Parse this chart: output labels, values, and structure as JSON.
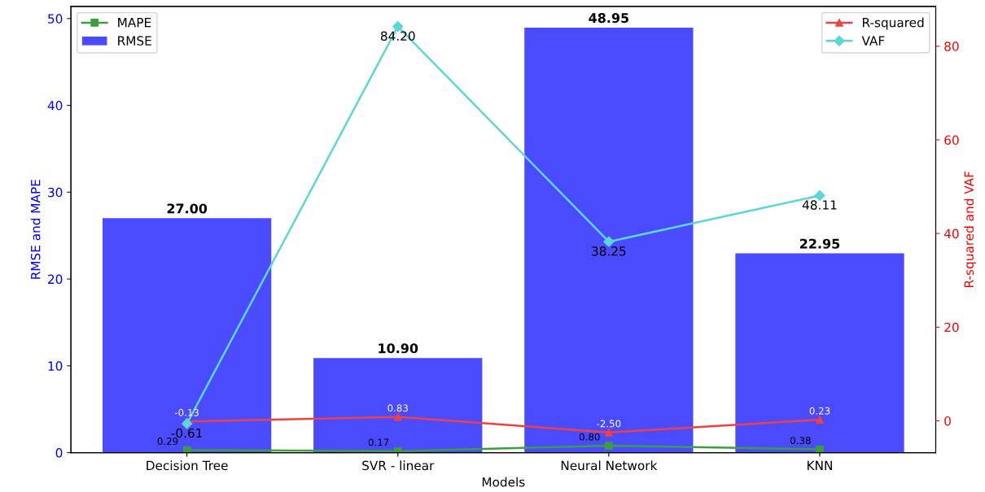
{
  "chart_data": {
    "type": "bar",
    "xlabel": "Models",
    "ylabel": "RMSE and MAPE",
    "y2label": "R-squared and VAF",
    "categories": [
      "Decision Tree",
      "SVR - linear",
      "Neural Network",
      "KNN"
    ],
    "series": [
      {
        "name": "RMSE",
        "color": "#4a4aff",
        "values": [
          27.0,
          10.9,
          48.95,
          22.95
        ],
        "value_labels": [
          "27.00",
          "10.90",
          "48.95",
          "22.95"
        ]
      },
      {
        "name": "MAPE",
        "type": "line",
        "marker": "square",
        "color": "#3c9f3c",
        "values": [
          0.29,
          0.17,
          0.8,
          0.38
        ],
        "value_labels": [
          "0.29",
          "0.17",
          "0.80",
          "0.38"
        ]
      },
      {
        "name": "R-squared",
        "type": "line",
        "axis": "y2",
        "marker": "triangle",
        "color": "#f04040",
        "values": [
          -0.13,
          0.83,
          -2.5,
          0.23
        ],
        "value_labels": [
          "-0.13",
          "0.83",
          "-2.50",
          "0.23"
        ]
      },
      {
        "name": "VAF",
        "type": "line",
        "axis": "y2",
        "marker": "diamond",
        "color": "#5cd6d6",
        "values": [
          -0.61,
          84.2,
          38.25,
          48.11
        ],
        "value_labels": [
          "-0.61",
          "84.20",
          "38.25",
          "48.11"
        ]
      }
    ],
    "ylim": [
      0,
      51.4
    ],
    "yticks": [
      0,
      10,
      20,
      30,
      40,
      50
    ],
    "y2lim": [
      -6.8,
      88.5
    ],
    "y2ticks": [
      0,
      20,
      40,
      60,
      80
    ],
    "legend": "top left",
    "grid": false
  }
}
